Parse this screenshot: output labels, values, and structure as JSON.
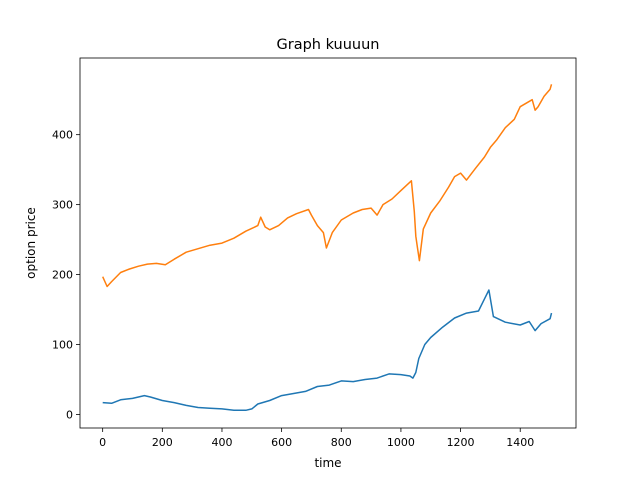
{
  "chart_data": {
    "type": "line",
    "title": "Graph kuuuun",
    "xlabel": "time",
    "ylabel": "option price",
    "xlim": [
      -76,
      1587
    ],
    "ylim": [
      -19.3,
      509.6
    ],
    "xticks": [
      0,
      200,
      400,
      600,
      800,
      1000,
      1200,
      1400
    ],
    "yticks": [
      0,
      100,
      200,
      300,
      400
    ],
    "grid": false,
    "legend": "none",
    "series": [
      {
        "color": "#ff7f0e",
        "x": [
          0,
          15,
          30,
          60,
          90,
          120,
          150,
          180,
          210,
          240,
          280,
          320,
          360,
          400,
          440,
          480,
          520,
          530,
          545,
          560,
          590,
          620,
          650,
          690,
          700,
          720,
          740,
          750,
          770,
          800,
          840,
          870,
          900,
          920,
          940,
          970,
          1000,
          1030,
          1035,
          1045,
          1050,
          1055,
          1062,
          1075,
          1100,
          1130,
          1160,
          1180,
          1200,
          1220,
          1250,
          1280,
          1300,
          1320,
          1350,
          1380,
          1400,
          1420,
          1440,
          1450,
          1460,
          1480,
          1500,
          1505
        ],
        "y": [
          197,
          183,
          190,
          203,
          208,
          212,
          215,
          216,
          214,
          222,
          232,
          237,
          242,
          245,
          252,
          262,
          270,
          282,
          268,
          264,
          270,
          281,
          287,
          293,
          285,
          270,
          260,
          238,
          260,
          278,
          288,
          293,
          295,
          285,
          300,
          308,
          320,
          332,
          334,
          290,
          255,
          240,
          220,
          265,
          288,
          305,
          325,
          340,
          345,
          335,
          352,
          368,
          382,
          392,
          410,
          422,
          440,
          445,
          450,
          435,
          440,
          455,
          465,
          472
        ]
      },
      {
        "color": "#1f77b4",
        "x": [
          0,
          30,
          60,
          100,
          140,
          160,
          200,
          240,
          280,
          320,
          360,
          400,
          440,
          480,
          500,
          520,
          560,
          600,
          640,
          680,
          720,
          760,
          800,
          840,
          880,
          920,
          960,
          1000,
          1030,
          1040,
          1050,
          1060,
          1080,
          1100,
          1140,
          1180,
          1220,
          1260,
          1280,
          1295,
          1310,
          1350,
          1400,
          1430,
          1450,
          1470,
          1500,
          1505
        ],
        "y": [
          17,
          16,
          21,
          23,
          27,
          25,
          20,
          17,
          13,
          10,
          9,
          8,
          6,
          6,
          8,
          15,
          20,
          27,
          30,
          33,
          40,
          42,
          48,
          47,
          50,
          52,
          58,
          57,
          55,
          52,
          60,
          80,
          100,
          110,
          125,
          138,
          145,
          148,
          165,
          178,
          140,
          132,
          128,
          133,
          120,
          130,
          137,
          145
        ]
      }
    ]
  }
}
